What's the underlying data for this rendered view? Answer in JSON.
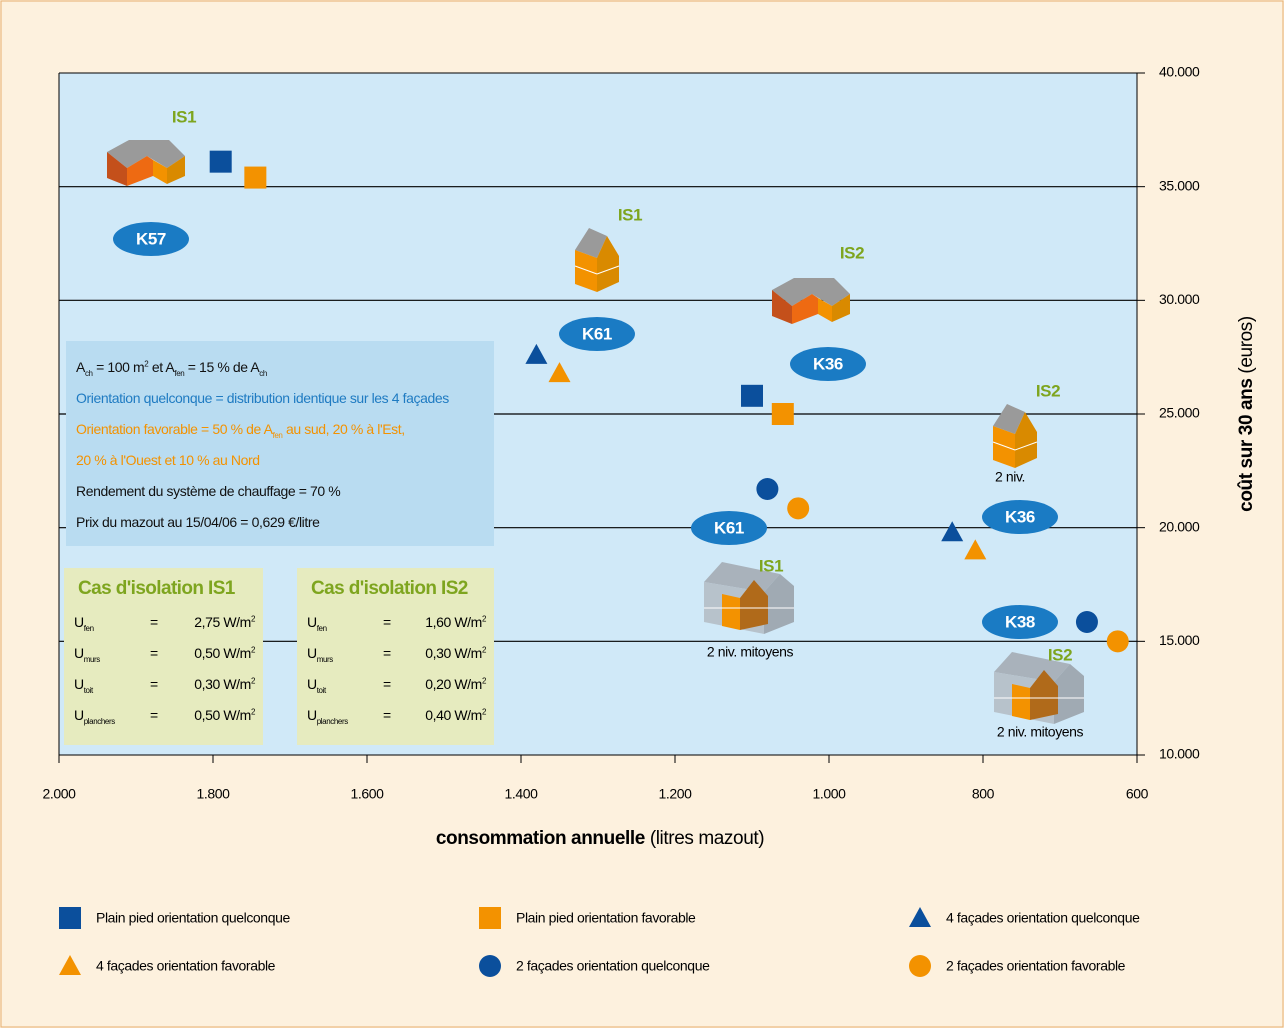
{
  "chart_data": {
    "type": "scatter",
    "xlabel": {
      "bold": "consommation annuelle",
      "rest": "(litres mazout)"
    },
    "ylabel": {
      "bold": "coût sur 30 ans",
      "rest": "(euros)"
    },
    "xlim": [
      2000,
      600
    ],
    "ylim": [
      10000,
      40000
    ],
    "xticks": [
      {
        "value": 2000,
        "label": "2.000"
      },
      {
        "value": 1800,
        "label": "1.800"
      },
      {
        "value": 1600,
        "label": "1.600"
      },
      {
        "value": 1400,
        "label": "1.400"
      },
      {
        "value": 1200,
        "label": "1.200"
      },
      {
        "value": 1000,
        "label": "1.000"
      },
      800,
      600
    ],
    "yticks": [
      {
        "value": 10000,
        "label": "10.000"
      },
      {
        "value": 15000,
        "label": "15.000"
      },
      {
        "value": 20000,
        "label": "20.000"
      },
      {
        "value": 25000,
        "label": "25.000"
      },
      {
        "value": 30000,
        "label": "30.000"
      },
      {
        "value": 35000,
        "label": "35.000"
      },
      {
        "value": 40000,
        "label": "40.000"
      }
    ],
    "grid": true,
    "series": [
      {
        "name": "Plain pied orientation quelconque",
        "color": "#0b4f9c",
        "marker": "square",
        "x": [
          1790,
          1100
        ],
        "values": [
          36100,
          25800
        ]
      },
      {
        "name": "Plain pied orientation favorable",
        "color": "#f39200",
        "marker": "square",
        "x": [
          1745,
          1060
        ],
        "values": [
          35400,
          25000
        ]
      },
      {
        "name": "4 façades orientation quelconque",
        "color": "#0b4f9c",
        "marker": "triangle",
        "x": [
          1380,
          840
        ],
        "values": [
          27600,
          19800
        ]
      },
      {
        "name": "4 façades orientation favorable",
        "color": "#f39200",
        "marker": "triangle",
        "x": [
          1350,
          810
        ],
        "values": [
          26800,
          19000
        ]
      },
      {
        "name": "2 façades orientation quelconque",
        "color": "#0b4f9c",
        "marker": "circle",
        "x": [
          1080,
          665
        ],
        "values": [
          21700,
          15850
        ]
      },
      {
        "name": "2 façades orientation favorable",
        "color": "#f39200",
        "marker": "circle",
        "x": [
          1040,
          625
        ],
        "values": [
          20850,
          15000
        ]
      }
    ],
    "k_labels": [
      "K57",
      "K61",
      "K36",
      "K61",
      "K36",
      "K38"
    ],
    "is_labels": [
      "IS1",
      "IS1",
      "IS2",
      "IS2",
      "IS1",
      "IS2"
    ],
    "notes": [
      "2 niv.",
      "2 niv. mitoyens",
      "2 niv. mitoyens"
    ]
  },
  "info": [
    [
      "A",
      "ch",
      " = 100 m",
      "2",
      " et A",
      "fen",
      " = 15 % de A",
      "ch"
    ],
    [
      "Orientation quelconque = distribution identique sur les 4 façades"
    ],
    [
      "Orientation favorable = 50 % de A",
      "fen",
      " au sud, 20 % à l'Est,"
    ],
    [
      "20 % à l'Ouest et 10 % au Nord"
    ],
    [
      "Rendement du système de chauffage = 70 %"
    ],
    [
      "Prix du mazout au 15/04/06 = 0,629 €/litre"
    ]
  ],
  "tables": [
    {
      "title": "Cas d'isolation IS1",
      "rows": [
        [
          "U",
          "fen",
          "=",
          "2,75 W/m",
          "2"
        ],
        [
          "U",
          "murs",
          "=",
          "0,50 W/m",
          "2"
        ],
        [
          "U",
          "toit",
          "=",
          "0,30 W/m",
          "2"
        ],
        [
          "U",
          "planchers",
          "=",
          "0,50 W/m",
          "2"
        ]
      ]
    },
    {
      "title": "Cas d'isolation IS2",
      "rows": [
        [
          "U",
          "fen",
          "=",
          "1,60 W/m",
          "2"
        ],
        [
          "U",
          "murs",
          "=",
          "0,30 W/m",
          "2"
        ],
        [
          "U",
          "toit",
          "=",
          "0,20 W/m",
          "2"
        ],
        [
          "U",
          "planchers",
          "=",
          "0,40 W/m",
          "2"
        ]
      ]
    }
  ]
}
